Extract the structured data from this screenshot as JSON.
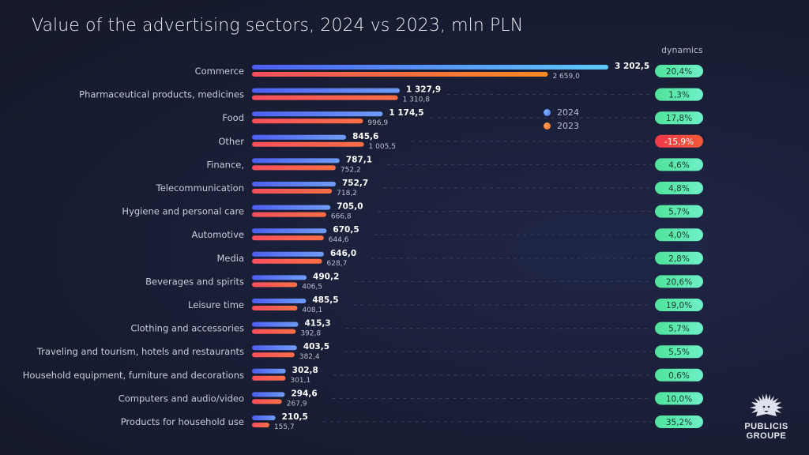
{
  "page": {
    "title": "Value of the advertising sectors, 2024 vs 2023, mln PLN",
    "dynamics_header": "dynamics",
    "logo": {
      "line1": "PUBLICIS",
      "line2": "GROUPE"
    }
  },
  "legend": [
    {
      "label": "2024",
      "color": "#5b6cf5"
    },
    {
      "label": "2023",
      "color": "#fb7a2c"
    }
  ],
  "colors": {
    "bar2024_start": "#4d5ff2",
    "bar2024_end": "#6f9cf7",
    "bar2024_highlight_end": "#5ec8f8",
    "bar2023_start": "#fb4f5e",
    "bar2023_end": "#fd6f45",
    "bar2023_highlight_end": "#fb8a22",
    "pill_positive_start": "#4fe39a",
    "pill_positive_end": "#6ff0c8",
    "pill_negative_start": "#f2384b",
    "pill_negative_end": "#f25a38"
  },
  "chart_data": {
    "type": "bar",
    "orientation": "horizontal",
    "title": "Value of the advertising sectors, 2024 vs 2023, mln PLN",
    "xlabel": "",
    "ylabel": "",
    "grid": false,
    "legend_position": "top-right",
    "categories": [
      "Commerce",
      "Pharmaceutical products, medicines",
      "Food",
      "Other",
      "Finance,",
      "Telecommunication",
      "Hygiene and personal care",
      "Automotive",
      "Media",
      "Beverages and spirits",
      "Leisure time",
      "Clothing and accessories",
      "Traveling and tourism, hotels and restaurants",
      "Household equipment, furniture and decorations",
      "Computers and audio/video",
      "Products for household use"
    ],
    "series": [
      {
        "name": "2024",
        "values": [
          3202.5,
          1327.9,
          1174.5,
          845.6,
          787.1,
          752.7,
          705.0,
          670.5,
          646.0,
          490.2,
          485.5,
          415.3,
          403.5,
          302.8,
          294.6,
          210.5
        ],
        "labels": [
          "3 202,5",
          "1 327,9",
          "1 174,5",
          "845,6",
          "787,1",
          "752,7",
          "705,0",
          "670,5",
          "646,0",
          "490,2",
          "485,5",
          "415,3",
          "403,5",
          "302,8",
          "294,6",
          "210,5"
        ]
      },
      {
        "name": "2023",
        "values": [
          2659.0,
          1310.8,
          996.9,
          1005.5,
          752.2,
          718.2,
          666.8,
          644.6,
          628.7,
          406.5,
          408.1,
          392.8,
          382.4,
          301.1,
          267.9,
          155.7
        ],
        "labels": [
          "2 659,0",
          "1 310,8",
          "996,9",
          "1 005,5",
          "752,2",
          "718,2",
          "666,8",
          "644,6",
          "628,7",
          "406,5",
          "408,1",
          "392,8",
          "382,4",
          "301,1",
          "267,9",
          "155,7"
        ]
      }
    ],
    "dynamics": {
      "header": "dynamics",
      "values": [
        20.4,
        1.3,
        17.8,
        -15.9,
        4.6,
        4.8,
        5.7,
        4.0,
        2.8,
        20.6,
        19.0,
        5.7,
        5.5,
        0.6,
        10.0,
        35.2
      ],
      "labels": [
        "20,4%",
        "1,3%",
        "17,8%",
        "-15,9%",
        "4,6%",
        "4,8%",
        "5,7%",
        "4,0%",
        "2,8%",
        "20,6%",
        "19,0%",
        "5,7%",
        "5,5%",
        "0,6%",
        "10,0%",
        "35,2%"
      ]
    },
    "xlim": [
      0,
      3202.5
    ]
  }
}
